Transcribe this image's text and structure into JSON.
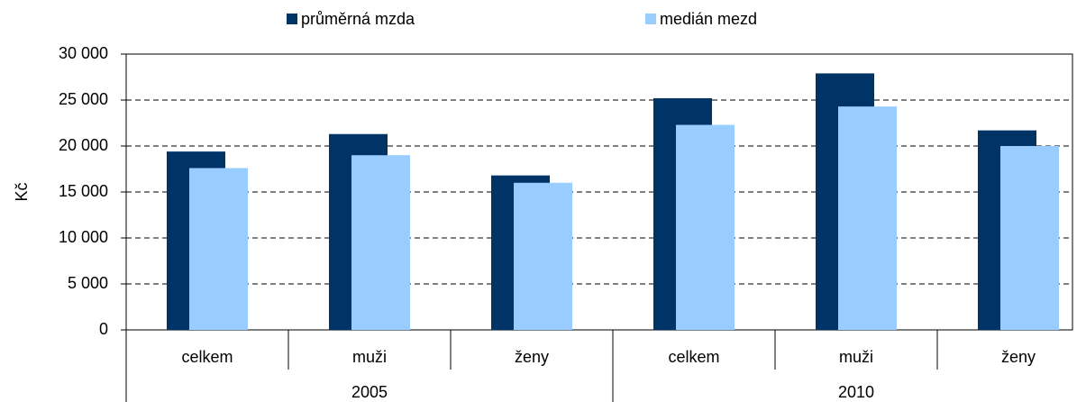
{
  "chart_data": {
    "type": "bar",
    "y_label": "Kč",
    "categories": [
      "celkem",
      "muži",
      "ženy",
      "celkem",
      "muži",
      "ženy"
    ],
    "groups": [
      "2005",
      "2010"
    ],
    "series": [
      {
        "name": "průměrná mzda",
        "color": "#003366",
        "values": [
          19400,
          21300,
          16800,
          25200,
          27900,
          21700
        ]
      },
      {
        "name": "medián mezd",
        "color": "#99ccff",
        "values": [
          17600,
          19000,
          16000,
          22300,
          24300,
          20000
        ]
      }
    ],
    "ylim": [
      0,
      30000
    ],
    "yticks": [
      0,
      {
        "value": 5000,
        "label": "5 000"
      },
      {
        "value": 10000,
        "label": "10 000"
      },
      {
        "value": 15000,
        "label": "15 000"
      },
      {
        "value": 20000,
        "label": "20 000"
      },
      {
        "value": 25000,
        "label": "25 000"
      },
      {
        "value": 30000,
        "label": "30 000"
      }
    ],
    "grid": true,
    "legend": "top"
  }
}
